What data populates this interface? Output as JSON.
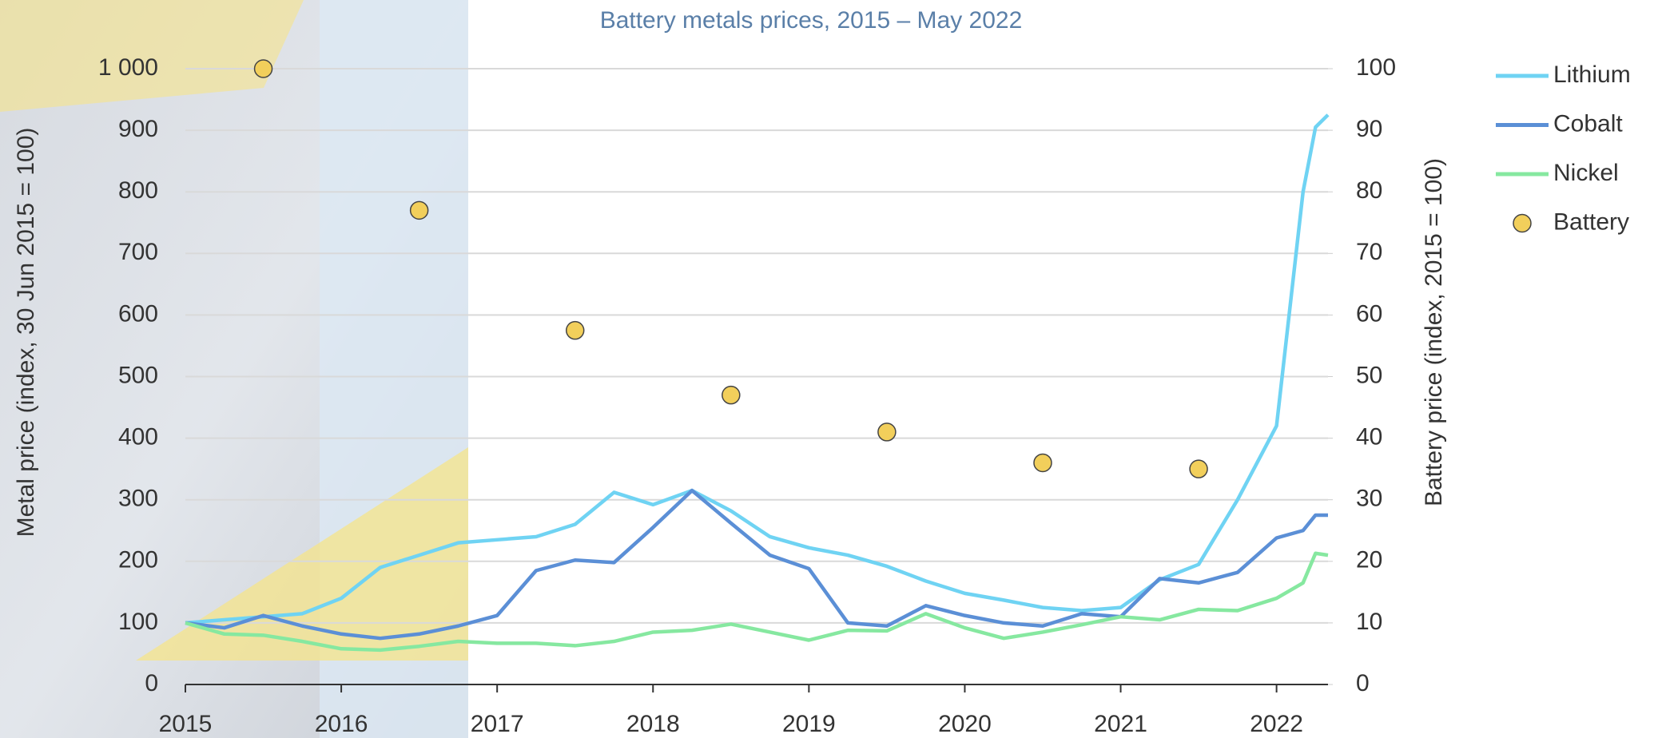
{
  "chart_data": {
    "type": "line",
    "title": "Battery metals prices, 2015 – May 2022",
    "y_label": "Metal price (index, 30 Jun 2015 = 100)",
    "y2_label": "Battery price (index, 2015 = 100)",
    "x": [
      2015,
      2015.25,
      2015.5,
      2015.75,
      2016,
      2016.25,
      2016.5,
      2016.75,
      2017,
      2017.25,
      2017.5,
      2017.75,
      2018,
      2018.25,
      2018.5,
      2018.75,
      2019,
      2019.25,
      2019.5,
      2019.75,
      2020,
      2020.25,
      2020.5,
      2020.75,
      2021,
      2021.25,
      2021.5,
      2021.75,
      2022,
      2022.17,
      2022.25,
      2022.33
    ],
    "xlim": [
      2015,
      2022.33
    ],
    "xticks": [
      2015,
      2016,
      2017,
      2018,
      2019,
      2020,
      2021,
      2022
    ],
    "ylim": [
      0,
      1000
    ],
    "yticks": [
      0,
      100,
      200,
      300,
      400,
      500,
      600,
      700,
      800,
      900,
      {
        "value": 1000,
        "label": "1 000"
      }
    ],
    "y2lim": [
      0,
      100
    ],
    "y2ticks": [
      0,
      10,
      20,
      30,
      40,
      50,
      60,
      70,
      80,
      90,
      100
    ],
    "grid": true,
    "legend": "right",
    "series": [
      {
        "name": "Lithium",
        "color": "#6fd3f3",
        "values": [
          100,
          105,
          110,
          115,
          140,
          190,
          210,
          230,
          235,
          240,
          260,
          312,
          292,
          315,
          282,
          240,
          222,
          210,
          192,
          168,
          148,
          137,
          125,
          120,
          125,
          170,
          195,
          300,
          420,
          800,
          905,
          925
        ]
      },
      {
        "name": "Cobalt",
        "color": "#5b8fd6",
        "values": [
          100,
          92,
          112,
          95,
          82,
          75,
          82,
          95,
          112,
          185,
          202,
          198,
          255,
          315,
          262,
          210,
          188,
          100,
          95,
          128,
          112,
          100,
          95,
          115,
          110,
          172,
          165,
          182,
          238,
          250,
          275,
          275
        ]
      },
      {
        "name": "Nickel",
        "color": "#86e8a0",
        "values": [
          100,
          82,
          80,
          70,
          58,
          56,
          62,
          70,
          67,
          67,
          63,
          70,
          85,
          88,
          98,
          85,
          72,
          88,
          87,
          115,
          92,
          75,
          85,
          97,
          110,
          105,
          122,
          120,
          140,
          165,
          213,
          210
        ]
      },
      {
        "name": "Battery",
        "color": "#f2cf5b",
        "type": "scatter",
        "axis": "y2",
        "x": [
          2015.5,
          2016.5,
          2017.5,
          2018.5,
          2019.5,
          2020.5,
          2021.5
        ],
        "values": [
          100,
          77,
          57.5,
          47,
          41,
          36,
          35
        ]
      }
    ]
  }
}
